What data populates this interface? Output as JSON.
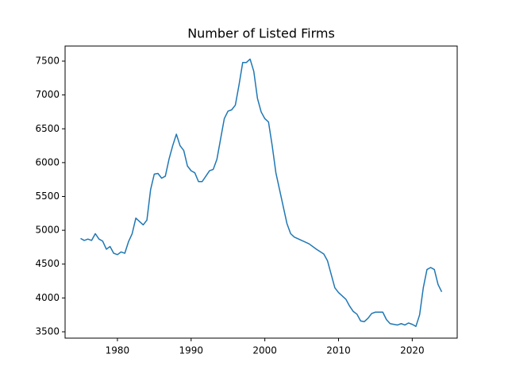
{
  "chart_data": {
    "type": "line",
    "title": "Number of Listed Firms",
    "x": [
      1975,
      1975.5,
      1976,
      1976.5,
      1977,
      1977.5,
      1978,
      1978.5,
      1979,
      1979.5,
      1980,
      1980.5,
      1981,
      1981.5,
      1982,
      1982.5,
      1983,
      1983.5,
      1984,
      1984.5,
      1985,
      1985.5,
      1986,
      1986.5,
      1987,
      1987.5,
      1988,
      1988.5,
      1989,
      1989.5,
      1990,
      1990.5,
      1991,
      1991.5,
      1992,
      1992.5,
      1993,
      1993.5,
      1994,
      1994.5,
      1995,
      1995.5,
      1996,
      1996.5,
      1997,
      1997.5,
      1998,
      1998.5,
      1999,
      1999.5,
      2000,
      2000.5,
      2001,
      2001.5,
      2002,
      2002.5,
      2003,
      2003.5,
      2004,
      2005,
      2006,
      2007,
      2008,
      2008.5,
      2009,
      2009.5,
      2010,
      2011,
      2011.5,
      2012,
      2012.5,
      2013,
      2013.5,
      2014,
      2014.5,
      2015,
      2016,
      2016.5,
      2017,
      2018,
      2018.5,
      2019,
      2019.5,
      2020,
      2020.5,
      2021,
      2021.5,
      2022,
      2022.5,
      2023,
      2023.5,
      2024
    ],
    "series": [
      {
        "color": "#1f77b4",
        "values": [
          4880,
          4850,
          4870,
          4850,
          4950,
          4870,
          4840,
          4720,
          4760,
          4660,
          4640,
          4680,
          4660,
          4830,
          4950,
          5180,
          5130,
          5080,
          5150,
          5600,
          5830,
          5840,
          5770,
          5800,
          6050,
          6250,
          6420,
          6250,
          6180,
          5950,
          5880,
          5850,
          5720,
          5720,
          5800,
          5880,
          5900,
          6050,
          6350,
          6650,
          6760,
          6780,
          6850,
          7150,
          7480,
          7480,
          7530,
          7350,
          6950,
          6750,
          6650,
          6600,
          6250,
          5850,
          5600,
          5350,
          5100,
          4950,
          4900,
          4850,
          4800,
          4720,
          4650,
          4550,
          4350,
          4150,
          4080,
          3980,
          3880,
          3800,
          3760,
          3660,
          3650,
          3700,
          3770,
          3790,
          3790,
          3680,
          3620,
          3600,
          3620,
          3600,
          3630,
          3610,
          3580,
          3750,
          4150,
          4420,
          4450,
          4420,
          4200,
          4090
        ]
      }
    ],
    "xlim": [
      1972.9,
      2026.1
    ],
    "xticks": [
      1980,
      1990,
      2000,
      2010,
      2020
    ],
    "ylim": [
      3406,
      7723
    ],
    "yticks": [
      3500,
      4000,
      4500,
      5000,
      5500,
      6000,
      6500,
      7000,
      7500
    ]
  }
}
